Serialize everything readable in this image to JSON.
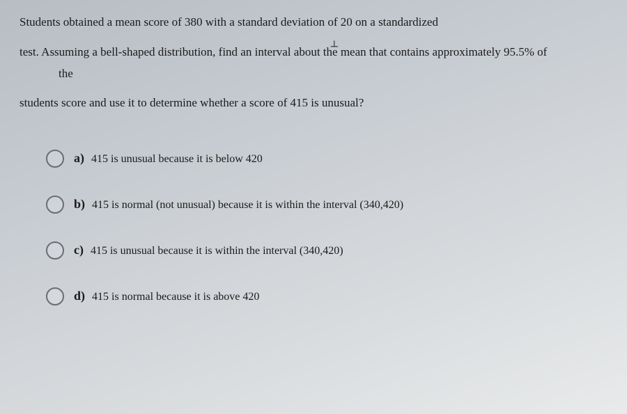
{
  "question": {
    "line1": "Students obtained a mean score of 380 with a standard deviation of 20 on a standardized",
    "line2_pre": "test. Assuming a bell-shaped distribution, find an interval about the",
    "line2_caret": "mean that contains approximately 95.5% of",
    "line2_sub": "the",
    "line3": "students score and use it to determine whether a score of 415 is unusual?"
  },
  "options": [
    {
      "label": "a)",
      "text": "415 is unusual because it is below 420"
    },
    {
      "label": "b)",
      "text": "415 is normal (not unusual) because it is within the interval   (340,420)"
    },
    {
      "label": "c)",
      "text": "415 is unusual because it is within the interval   (340,420)"
    },
    {
      "label": "d)",
      "text": "415 is normal because it is above 420"
    }
  ]
}
